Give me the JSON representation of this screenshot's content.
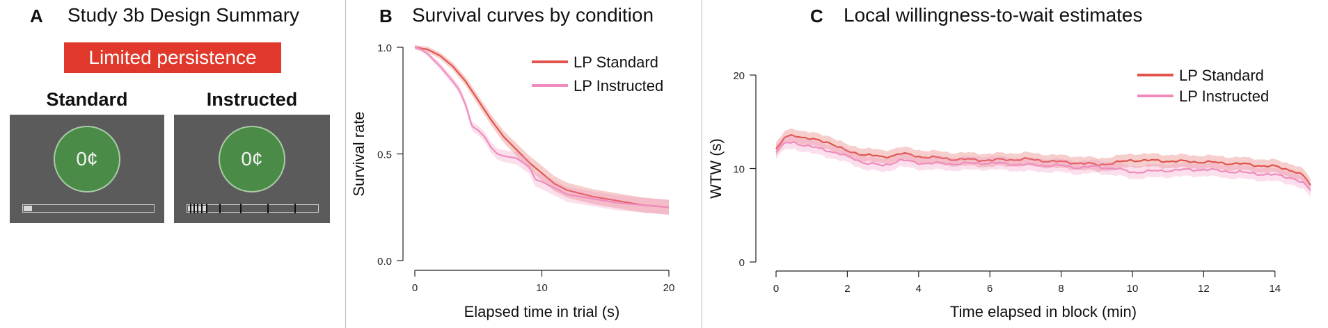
{
  "panel_a": {
    "letter": "A",
    "title": "Study 3b Design Summary",
    "badge": "Limited persistence",
    "badge_color": "#e0392b",
    "conditions": [
      {
        "label": "Standard",
        "coin": "0¢",
        "bar": "continuous progress bar"
      },
      {
        "label": "Instructed",
        "coin": "0¢",
        "bar": "progress bar with tick marks"
      }
    ]
  },
  "chart_data": [
    {
      "type": "line",
      "letter": "B",
      "title": "Survival curves by condition",
      "xlabel": "Elapsed time in trial (s)",
      "ylabel": "Survival rate",
      "xlim": [
        0,
        20
      ],
      "ylim": [
        0,
        1
      ],
      "xticks": [
        "0",
        "10",
        "20"
      ],
      "yticks": [
        "0.0",
        "0.5",
        "1.0"
      ],
      "legend_position": "top-right",
      "series": [
        {
          "name": "LP Standard",
          "color": "#e0544d",
          "x": [
            0,
            1,
            2,
            3,
            4,
            5,
            6,
            7,
            8,
            9,
            10,
            11,
            12,
            14,
            16,
            18,
            20
          ],
          "y": [
            1.0,
            0.99,
            0.96,
            0.91,
            0.84,
            0.75,
            0.66,
            0.58,
            0.52,
            0.46,
            0.41,
            0.36,
            0.33,
            0.3,
            0.28,
            0.26,
            0.25
          ]
        },
        {
          "name": "LP Instructed",
          "color": "#ef8cbd",
          "x": [
            0,
            0.5,
            1,
            2,
            3,
            3.5,
            4,
            4.5,
            5,
            5.5,
            6,
            6.5,
            7,
            8,
            8.5,
            9,
            9.5,
            10,
            11,
            12,
            14,
            16,
            18,
            20
          ],
          "y": [
            1.0,
            0.99,
            0.97,
            0.91,
            0.84,
            0.8,
            0.73,
            0.63,
            0.61,
            0.58,
            0.53,
            0.5,
            0.49,
            0.48,
            0.46,
            0.44,
            0.38,
            0.37,
            0.34,
            0.31,
            0.29,
            0.27,
            0.26,
            0.25
          ]
        }
      ]
    },
    {
      "type": "line",
      "letter": "C",
      "title": "Local willingness-to-wait estimates",
      "xlabel": "Time elapsed in block (min)",
      "ylabel": "WTW (s)",
      "xlim": [
        0,
        15
      ],
      "ylim": [
        0,
        20
      ],
      "xticks": [
        "0",
        "2",
        "4",
        "6",
        "8",
        "10",
        "12",
        "14"
      ],
      "yticks": [
        "0",
        "10",
        "20"
      ],
      "legend_position": "top-right",
      "series": [
        {
          "name": "LP Standard",
          "color": "#e0544d",
          "x": [
            0,
            0.25,
            0.5,
            1,
            1.5,
            2,
            2.5,
            3,
            3.5,
            4,
            5,
            6,
            7,
            8,
            8.5,
            9,
            9.5,
            10,
            11,
            12,
            13,
            14,
            14.5,
            14.8,
            15
          ],
          "y": [
            12.0,
            13.3,
            13.6,
            13.1,
            12.8,
            11.8,
            11.5,
            11.2,
            11.6,
            11.3,
            11.0,
            10.9,
            11.0,
            10.7,
            10.6,
            10.4,
            10.6,
            10.9,
            10.8,
            10.7,
            10.5,
            10.2,
            9.8,
            9.2,
            8.2
          ]
        },
        {
          "name": "LP Instructed",
          "color": "#ef8cbd",
          "x": [
            0,
            0.25,
            0.5,
            1,
            1.5,
            2,
            2.5,
            3,
            3.5,
            4,
            5,
            6,
            7,
            8,
            8.5,
            9,
            9.5,
            10,
            11,
            12,
            13,
            14,
            14.5,
            14.8,
            15
          ],
          "y": [
            11.8,
            12.7,
            12.8,
            12.3,
            11.9,
            11.3,
            10.6,
            10.3,
            10.9,
            10.6,
            10.5,
            10.6,
            10.4,
            10.3,
            10.1,
            10.2,
            10.0,
            9.6,
            9.8,
            9.9,
            9.6,
            9.3,
            9.0,
            8.4,
            7.6
          ]
        }
      ]
    }
  ]
}
